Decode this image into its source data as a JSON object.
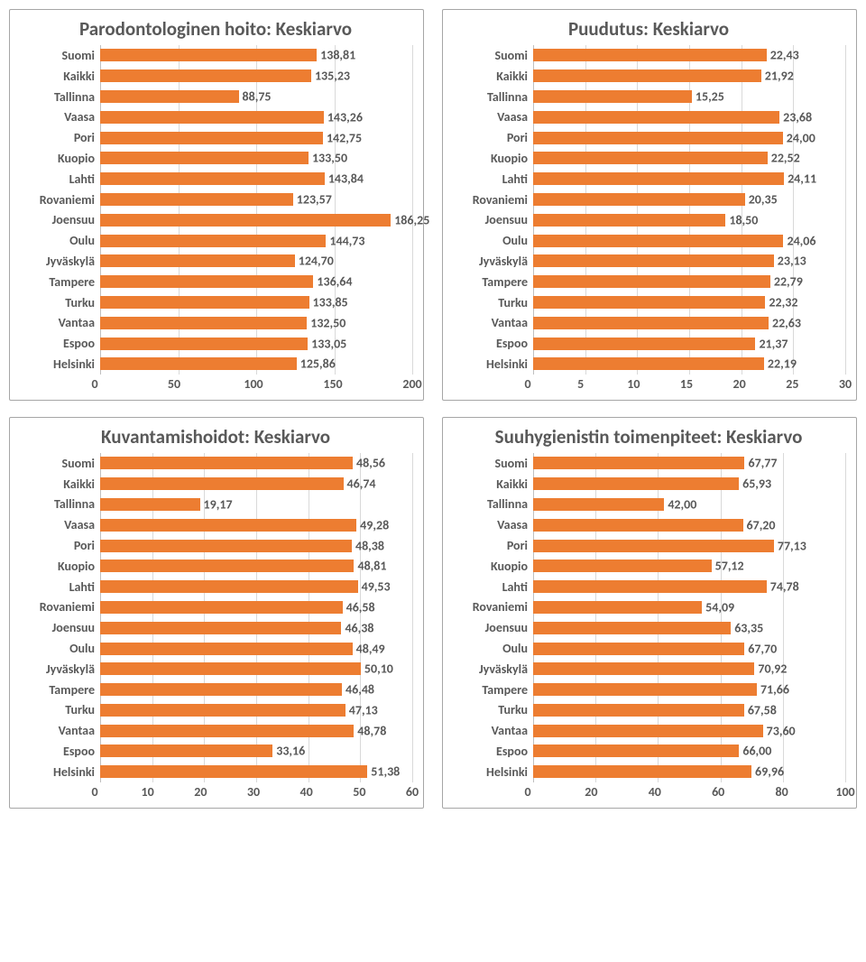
{
  "colors": {
    "bar": "#ed7d31",
    "text": "#595959",
    "grid": "#d9d9d9",
    "axis": "#bfbfbf",
    "border": "#a6a6a6",
    "bg": "#ffffff"
  },
  "title_fontsize": 21,
  "label_fontsize": 14,
  "cat_label_width": 84,
  "charts": [
    {
      "id": "parodont",
      "title": "Parodontologinen hoito: Keskiarvo",
      "type": "bar",
      "xmin": 0,
      "xmax": 200,
      "xtick_step": 50,
      "categories": [
        "Suomi",
        "Kaikki",
        "Tallinna",
        "Vaasa",
        "Pori",
        "Kuopio",
        "Lahti",
        "Rovaniemi",
        "Joensuu",
        "Oulu",
        "Jyväskylä",
        "Tampere",
        "Turku",
        "Vantaa",
        "Espoo",
        "Helsinki"
      ],
      "values": [
        138.81,
        135.23,
        88.75,
        143.26,
        142.75,
        133.5,
        143.84,
        123.57,
        186.25,
        144.73,
        124.7,
        136.64,
        133.85,
        132.5,
        133.05,
        125.86
      ],
      "value_labels": [
        "138,81",
        "135,23",
        "88,75",
        "143,26",
        "142,75",
        "133,50",
        "143,84",
        "123,57",
        "186,25",
        "144,73",
        "124,70",
        "136,64",
        "133,85",
        "132,50",
        "133,05",
        "125,86"
      ]
    },
    {
      "id": "puudutus",
      "title": "Puudutus: Keskiarvo",
      "type": "bar",
      "xmin": 0,
      "xmax": 30,
      "xtick_step": 5,
      "categories": [
        "Suomi",
        "Kaikki",
        "Tallinna",
        "Vaasa",
        "Pori",
        "Kuopio",
        "Lahti",
        "Rovaniemi",
        "Joensuu",
        "Oulu",
        "Jyväskylä",
        "Tampere",
        "Turku",
        "Vantaa",
        "Espoo",
        "Helsinki"
      ],
      "values": [
        22.43,
        21.92,
        15.25,
        23.68,
        24.0,
        22.52,
        24.11,
        20.35,
        18.5,
        24.06,
        23.13,
        22.79,
        22.32,
        22.63,
        21.37,
        22.19
      ],
      "value_labels": [
        "22,43",
        "21,92",
        "15,25",
        "23,68",
        "24,00",
        "22,52",
        "24,11",
        "20,35",
        "18,50",
        "24,06",
        "23,13",
        "22,79",
        "22,32",
        "22,63",
        "21,37",
        "22,19"
      ]
    },
    {
      "id": "kuvantamis",
      "title": "Kuvantamishoidot: Keskiarvo",
      "type": "bar",
      "xmin": 0,
      "xmax": 60,
      "xtick_step": 10,
      "categories": [
        "Suomi",
        "Kaikki",
        "Tallinna",
        "Vaasa",
        "Pori",
        "Kuopio",
        "Lahti",
        "Rovaniemi",
        "Joensuu",
        "Oulu",
        "Jyväskylä",
        "Tampere",
        "Turku",
        "Vantaa",
        "Espoo",
        "Helsinki"
      ],
      "values": [
        48.56,
        46.74,
        19.17,
        49.28,
        48.38,
        48.81,
        49.53,
        46.58,
        46.38,
        48.49,
        50.1,
        46.48,
        47.13,
        48.78,
        33.16,
        51.38
      ],
      "value_labels": [
        "48,56",
        "46,74",
        "19,17",
        "49,28",
        "48,38",
        "48,81",
        "49,53",
        "46,58",
        "46,38",
        "48,49",
        "50,10",
        "46,48",
        "47,13",
        "48,78",
        "33,16",
        "51,38"
      ]
    },
    {
      "id": "suuhyg",
      "title": "Suuhygienistin toimenpiteet: Keskiarvo",
      "type": "bar",
      "xmin": 0,
      "xmax": 100,
      "xtick_step": 20,
      "categories": [
        "Suomi",
        "Kaikki",
        "Tallinna",
        "Vaasa",
        "Pori",
        "Kuopio",
        "Lahti",
        "Rovaniemi",
        "Joensuu",
        "Oulu",
        "Jyväskylä",
        "Tampere",
        "Turku",
        "Vantaa",
        "Espoo",
        "Helsinki"
      ],
      "values": [
        67.77,
        65.93,
        42.0,
        67.2,
        77.13,
        57.12,
        74.78,
        54.09,
        63.35,
        67.7,
        70.92,
        71.66,
        67.58,
        73.6,
        66.0,
        69.96
      ],
      "value_labels": [
        "67,77",
        "65,93",
        "42,00",
        "67,20",
        "77,13",
        "57,12",
        "74,78",
        "54,09",
        "63,35",
        "67,70",
        "70,92",
        "71,66",
        "67,58",
        "73,60",
        "66,00",
        "69,96"
      ]
    }
  ]
}
